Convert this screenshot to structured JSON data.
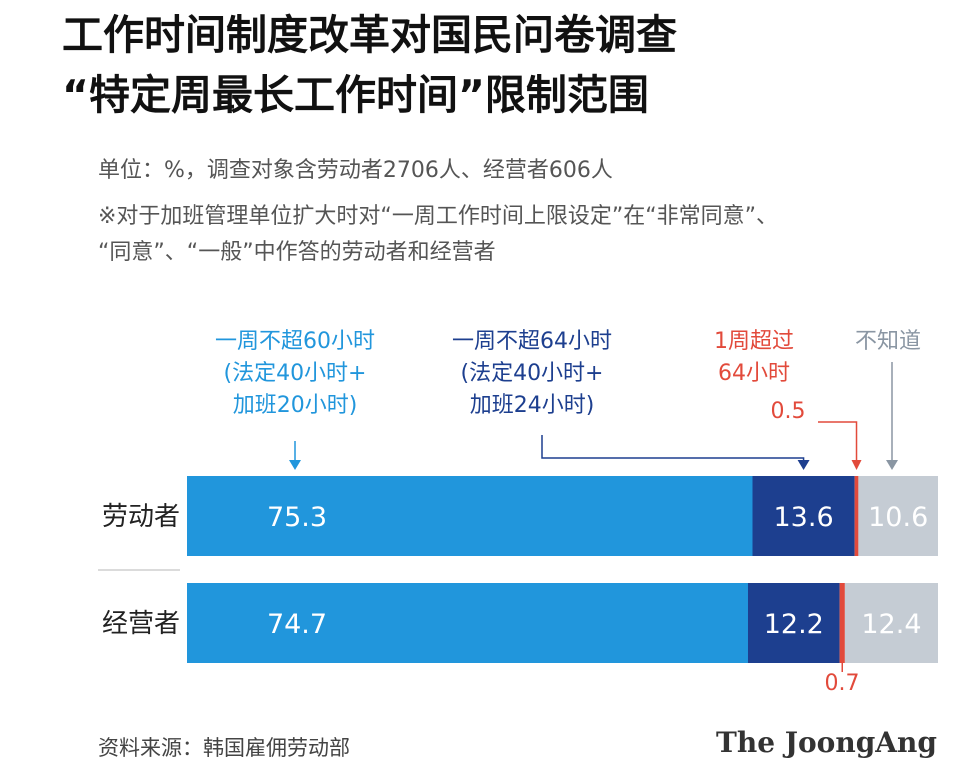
{
  "title": {
    "line1": "工作时间制度改革对国民问卷调查",
    "line2": "“特定周最长工作时间”限制范围"
  },
  "subtitle": {
    "unit": "单位：%，调查对象含劳动者2706人、经营者606人",
    "note1": "※对于加班管理单位扩大时对“一周工作时间上限设定”在“非常同意”、",
    "note2": "“同意”、“一般”中作答的劳动者和经营者"
  },
  "colors": {
    "c60": "#2196dc",
    "c64": "#1d3f8f",
    "over": "#e24a3b",
    "unknown": "#c5ccd4"
  },
  "annotations": {
    "c60": [
      "一周不超60小时",
      "(法定40小时+",
      "加班20小时)"
    ],
    "c64": [
      "一周不超64小时",
      "(法定40小时+",
      "加班24小时)"
    ],
    "over": [
      "1周超过",
      "64小时"
    ],
    "unknown": "不知道",
    "over_worker_value": "0.5",
    "over_employer_value": "0.7"
  },
  "chart_data": {
    "type": "bar",
    "orientation": "horizontal",
    "stacked": true,
    "categories": [
      "劳动者",
      "经营者"
    ],
    "series": [
      {
        "name": "一周不超60小时(法定40小时+加班20小时)",
        "values": [
          75.3,
          74.7
        ],
        "color": "#2196dc"
      },
      {
        "name": "一周不超64小时(法定40小时+加班24小时)",
        "values": [
          13.6,
          12.2
        ],
        "color": "#1d3f8f"
      },
      {
        "name": "1周超过64小时",
        "values": [
          0.5,
          0.7
        ],
        "color": "#e24a3b"
      },
      {
        "name": "不知道",
        "values": [
          10.6,
          12.4
        ],
        "color": "#c5ccd4"
      }
    ],
    "value_labels": [
      [
        "75.3",
        "13.6",
        "",
        "10.6"
      ],
      [
        "74.7",
        "12.2",
        "",
        "12.4"
      ]
    ],
    "xlim": [
      0,
      100
    ],
    "legend": "annotations above bars"
  },
  "footer": {
    "source": "资料来源：韩国雇佣劳动部",
    "brand": "The JoongAng"
  }
}
